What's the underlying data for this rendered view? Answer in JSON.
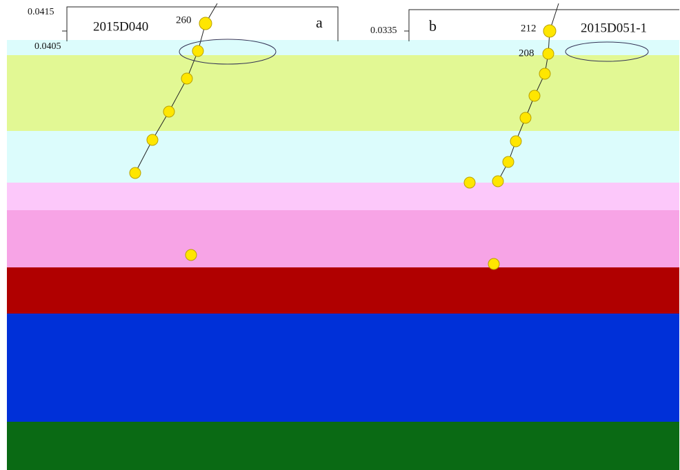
{
  "panels": [
    {
      "letter": "a",
      "sample": "2015D040",
      "y_top": "0.0415",
      "y_second": "0.0405",
      "age_labels": [
        "260"
      ]
    },
    {
      "letter": "b",
      "sample": "2015D051-1",
      "y_top": "0.0335",
      "age_labels": [
        "212",
        "208"
      ]
    }
  ]
}
